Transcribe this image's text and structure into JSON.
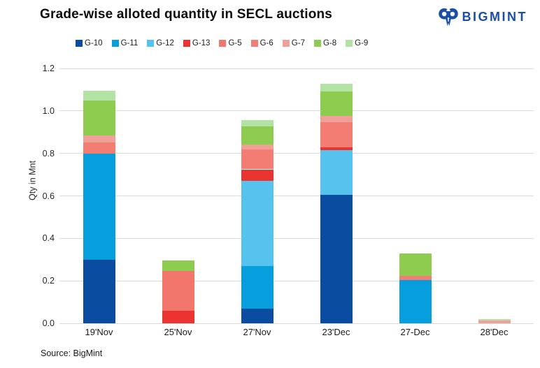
{
  "title": "Grade-wise alloted quantity in SECL auctions",
  "logo": {
    "text": "BIGMINT",
    "color": "#1B4FA4"
  },
  "source": "Source: BigMint",
  "axis": {
    "y_title": "Qty in Mnt"
  },
  "colors": {
    "grid": "#d9d9d9",
    "background": "#ffffff"
  },
  "chart_data": {
    "type": "bar",
    "stacked": true,
    "title": "Grade-wise alloted quantity in SECL auctions",
    "xlabel": "",
    "ylabel": "Qty in Mnt",
    "ylim": [
      0,
      1.2
    ],
    "ytick_step": 0.2,
    "grid": true,
    "legend_position": "top",
    "categories": [
      "19'Nov",
      "25'Nov",
      "27'Nov",
      "23'Dec",
      "27-Dec",
      "28'Dec"
    ],
    "series": [
      {
        "name": "G-10",
        "color": "#0a4da0",
        "values": [
          0.3,
          0,
          0.07,
          0.605,
          0,
          0
        ]
      },
      {
        "name": "G-11",
        "color": "#069edc",
        "values": [
          0.5,
          0,
          0.2,
          0,
          0.205,
          0
        ]
      },
      {
        "name": "G-12",
        "color": "#56c3ef",
        "values": [
          0,
          0,
          0.4,
          0.21,
          0,
          0
        ]
      },
      {
        "name": "G-13",
        "color": "#eb3430",
        "values": [
          0,
          0.06,
          0.055,
          0.015,
          0,
          0
        ]
      },
      {
        "name": "G-5",
        "color": "#f3766c",
        "values": [
          0,
          0.185,
          0,
          0,
          0,
          0
        ]
      },
      {
        "name": "G-6",
        "color": "#f37d73",
        "values": [
          0.05,
          0,
          0.095,
          0.118,
          0.018,
          0
        ]
      },
      {
        "name": "G-7",
        "color": "#f1a099",
        "values": [
          0.035,
          0,
          0.022,
          0.027,
          0,
          0.013
        ]
      },
      {
        "name": "G-8",
        "color": "#8dcc4f",
        "values": [
          0.165,
          0.05,
          0.085,
          0.115,
          0.105,
          0
        ]
      },
      {
        "name": "G-9",
        "color": "#b2e3a4",
        "values": [
          0.045,
          0,
          0.029,
          0.038,
          0,
          0.008
        ]
      }
    ]
  }
}
